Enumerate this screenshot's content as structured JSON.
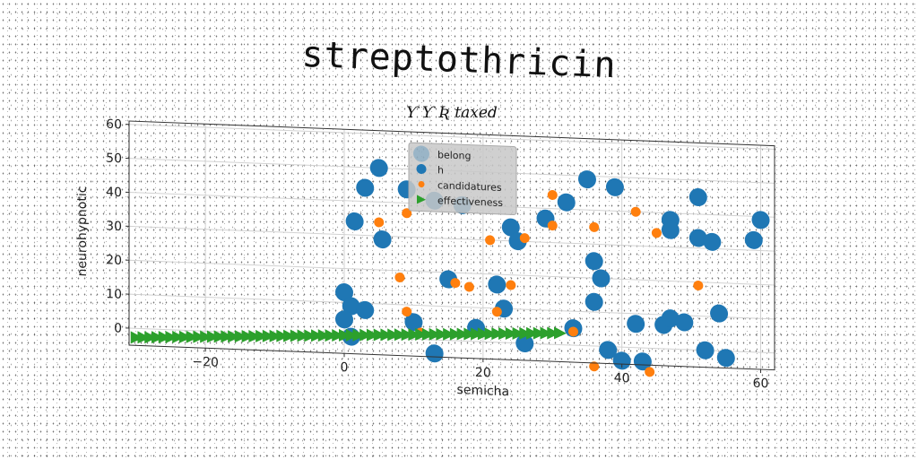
{
  "chart_data": {
    "type": "scatter",
    "title": "streptothricin",
    "subtitle": "Ƴ Ƴ Ʀ taxed",
    "xlabel": "semicha",
    "ylabel": "neurohypnotic",
    "xlim": [
      -31,
      62
    ],
    "ylim": [
      -5,
      61
    ],
    "xticks": [
      -20,
      0,
      20,
      40,
      60
    ],
    "yticks": [
      0,
      10,
      20,
      30,
      40,
      50,
      60
    ],
    "grid": true,
    "legend_position": "top-center",
    "legend": [
      "belong",
      "h",
      "candidatures",
      "effectiveness"
    ],
    "colors": {
      "blue": "#1f77b4",
      "orange": "#ff7f0e",
      "green": "#2ca02c"
    },
    "series": [
      {
        "name": "h",
        "marker": "circle-large",
        "color": "#1f77b4",
        "points": [
          [
            5,
            50
          ],
          [
            3,
            44
          ],
          [
            9,
            44
          ],
          [
            1.5,
            34
          ],
          [
            5.5,
            29
          ],
          [
            13,
            41
          ],
          [
            17,
            40
          ],
          [
            0,
            13
          ],
          [
            1,
            9
          ],
          [
            3,
            8
          ],
          [
            0,
            5
          ],
          [
            1,
            0
          ],
          [
            10,
            5
          ],
          [
            15,
            18
          ],
          [
            22,
            17
          ],
          [
            23,
            10
          ],
          [
            19,
            4
          ],
          [
            13,
            -4
          ],
          [
            26,
            0
          ],
          [
            24,
            34
          ],
          [
            25,
            30
          ],
          [
            29,
            37
          ],
          [
            32,
            42
          ],
          [
            35,
            49
          ],
          [
            39,
            47
          ],
          [
            36,
            25
          ],
          [
            37,
            20
          ],
          [
            36,
            13
          ],
          [
            33,
            5
          ],
          [
            38,
            -1
          ],
          [
            40,
            -4
          ],
          [
            43,
            -4
          ],
          [
            42,
            7
          ],
          [
            46,
            7
          ],
          [
            47,
            9
          ],
          [
            47,
            38
          ],
          [
            47,
            35
          ],
          [
            49,
            8
          ],
          [
            51,
            45
          ],
          [
            51,
            33
          ],
          [
            53,
            32
          ],
          [
            54,
            11
          ],
          [
            52,
            0
          ],
          [
            55,
            -2
          ],
          [
            59,
            33
          ],
          [
            60,
            39
          ]
        ]
      },
      {
        "name": "candidatures",
        "marker": "circle-small",
        "color": "#ff7f0e",
        "points": [
          [
            5,
            34
          ],
          [
            9,
            37
          ],
          [
            8,
            18
          ],
          [
            9,
            8
          ],
          [
            11,
            2
          ],
          [
            16,
            17
          ],
          [
            18,
            16
          ],
          [
            21,
            30
          ],
          [
            24,
            17
          ],
          [
            22,
            9
          ],
          [
            26,
            31
          ],
          [
            30,
            44
          ],
          [
            30,
            35
          ],
          [
            33,
            4
          ],
          [
            36,
            35
          ],
          [
            36,
            -6
          ],
          [
            42,
            40
          ],
          [
            44,
            -7
          ],
          [
            45,
            34
          ],
          [
            51,
            19
          ]
        ]
      },
      {
        "name": "effectiveness",
        "marker": "triangle-right",
        "color": "#2ca02c",
        "points": [
          [
            -30,
            -2.7
          ],
          [
            -29,
            -2.6
          ],
          [
            -28,
            -2.5
          ],
          [
            -27,
            -2.4
          ],
          [
            -26,
            -2.3
          ],
          [
            -25,
            -2.2
          ],
          [
            -24,
            -2.1
          ],
          [
            -23,
            -2.0
          ],
          [
            -22,
            -1.9
          ],
          [
            -21,
            -1.8
          ],
          [
            -20,
            -1.7
          ],
          [
            -19,
            -1.6
          ],
          [
            -18,
            -1.5
          ],
          [
            -17,
            -1.4
          ],
          [
            -16,
            -1.3
          ],
          [
            -15,
            -1.2
          ],
          [
            -14,
            -1.1
          ],
          [
            -13,
            -1.0
          ],
          [
            -12,
            -0.9
          ],
          [
            -11,
            -0.8
          ],
          [
            -10,
            -0.7
          ],
          [
            -9,
            -0.6
          ],
          [
            -8,
            -0.5
          ],
          [
            -7,
            -0.4
          ],
          [
            -6,
            -0.3
          ],
          [
            -5,
            -0.2
          ],
          [
            -4,
            -0.1
          ],
          [
            -3,
            0.0
          ],
          [
            -2,
            0.1
          ],
          [
            -1,
            0.2
          ],
          [
            0,
            0.3
          ],
          [
            1,
            0.4
          ],
          [
            2,
            0.5
          ],
          [
            3,
            0.6
          ],
          [
            4,
            0.7
          ],
          [
            5,
            0.8
          ],
          [
            6,
            0.9
          ],
          [
            7,
            1.0
          ],
          [
            8,
            1.1
          ],
          [
            9,
            1.2
          ],
          [
            10,
            1.3
          ],
          [
            11,
            1.4
          ],
          [
            12,
            1.5
          ],
          [
            13,
            1.6
          ],
          [
            14,
            1.7
          ],
          [
            15,
            1.8
          ],
          [
            16,
            1.9
          ],
          [
            17,
            2.0
          ],
          [
            18,
            2.1
          ],
          [
            19,
            2.2
          ],
          [
            20,
            2.3
          ],
          [
            21,
            2.4
          ],
          [
            22,
            2.5
          ],
          [
            23,
            2.6
          ],
          [
            24,
            2.7
          ],
          [
            25,
            2.8
          ],
          [
            26,
            2.9
          ],
          [
            27,
            3.0
          ],
          [
            28,
            3.1
          ],
          [
            29,
            3.2
          ],
          [
            30,
            3.3
          ],
          [
            31,
            3.4
          ]
        ]
      }
    ]
  }
}
